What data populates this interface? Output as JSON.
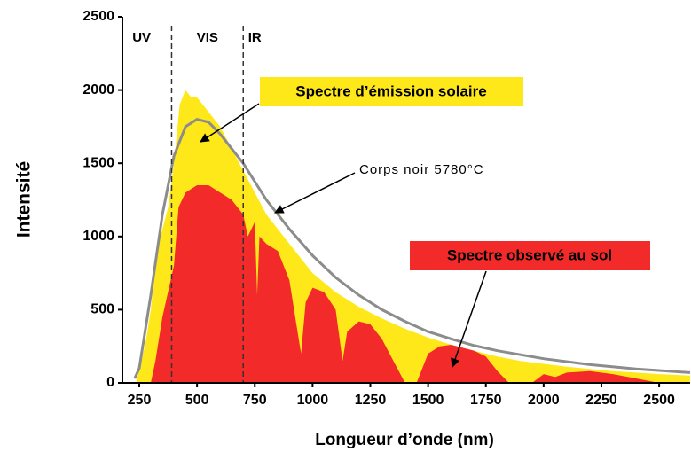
{
  "chart_data": {
    "type": "area",
    "xlabel": "Longueur d’onde (nm)",
    "ylabel": "Intensité",
    "xlim": [
      177,
      2634
    ],
    "ylim": [
      0,
      2500
    ],
    "xticks": [
      250,
      500,
      750,
      1000,
      1250,
      1500,
      1750,
      2000,
      2250,
      2500
    ],
    "yticks": [
      0,
      500,
      1000,
      1500,
      2000,
      2500
    ],
    "regions": [
      {
        "label": "UV",
        "x": 260
      },
      {
        "label": "VIS",
        "x": 545
      },
      {
        "label": "IR",
        "x": 750
      }
    ],
    "vlines": [
      390,
      700
    ],
    "series": [
      {
        "name": "Spectre d’émission solaire",
        "color": "#ffe81a",
        "kind": "area",
        "x": [
          240,
          260,
          280,
          300,
          325,
          350,
          375,
          400,
          425,
          450,
          475,
          500,
          550,
          600,
          650,
          700,
          750,
          800,
          900,
          1000,
          1100,
          1200,
          1300,
          1400,
          1500,
          1600,
          1700,
          1800,
          1900,
          2000,
          2100,
          2200,
          2300,
          2400,
          2500,
          2634
        ],
        "values": [
          30,
          150,
          300,
          500,
          900,
          1050,
          1200,
          1500,
          1900,
          2000,
          1950,
          1950,
          1850,
          1750,
          1600,
          1450,
          1300,
          1150,
          950,
          750,
          620,
          520,
          440,
          370,
          310,
          260,
          220,
          180,
          150,
          130,
          110,
          95,
          80,
          70,
          60,
          50
        ]
      },
      {
        "name": "Spectre observé au sol",
        "color": "#f22a2a",
        "kind": "area",
        "x": [
          300,
          320,
          350,
          400,
          420,
          450,
          500,
          550,
          600,
          650,
          700,
          720,
          750,
          760,
          770,
          800,
          850,
          900,
          930,
          950,
          970,
          1000,
          1050,
          1100,
          1130,
          1150,
          1200,
          1250,
          1300,
          1350,
          1400,
          1450,
          1500,
          1550,
          1600,
          1700,
          1750,
          1800,
          1850,
          1950,
          2000,
          2050,
          2100,
          2200,
          2300,
          2400,
          2500,
          2634
        ],
        "values": [
          0,
          150,
          450,
          800,
          1200,
          1300,
          1350,
          1350,
          1300,
          1250,
          1150,
          1000,
          1100,
          600,
          1000,
          950,
          900,
          700,
          400,
          200,
          550,
          650,
          620,
          500,
          150,
          350,
          420,
          400,
          300,
          150,
          0,
          0,
          200,
          250,
          260,
          220,
          180,
          80,
          0,
          0,
          60,
          40,
          70,
          80,
          60,
          30,
          0,
          0
        ]
      },
      {
        "name": "Corps noir 5780°C",
        "color": "#8c8c8c",
        "kind": "line",
        "x": [
          230,
          250,
          300,
          350,
          400,
          450,
          500,
          550,
          600,
          700,
          800,
          900,
          1000,
          1100,
          1200,
          1300,
          1400,
          1500,
          1600,
          1700,
          1800,
          2000,
          2200,
          2400,
          2634
        ],
        "values": [
          30,
          100,
          600,
          1150,
          1550,
          1750,
          1800,
          1780,
          1700,
          1500,
          1250,
          1050,
          870,
          720,
          600,
          500,
          420,
          350,
          300,
          255,
          220,
          165,
          125,
          95,
          70
        ]
      }
    ],
    "annotations": [
      {
        "text": "Spectre d’émission solaire"
      },
      {
        "text": "Corps noir 5780°C"
      },
      {
        "text": "Spectre observé au sol"
      }
    ]
  }
}
